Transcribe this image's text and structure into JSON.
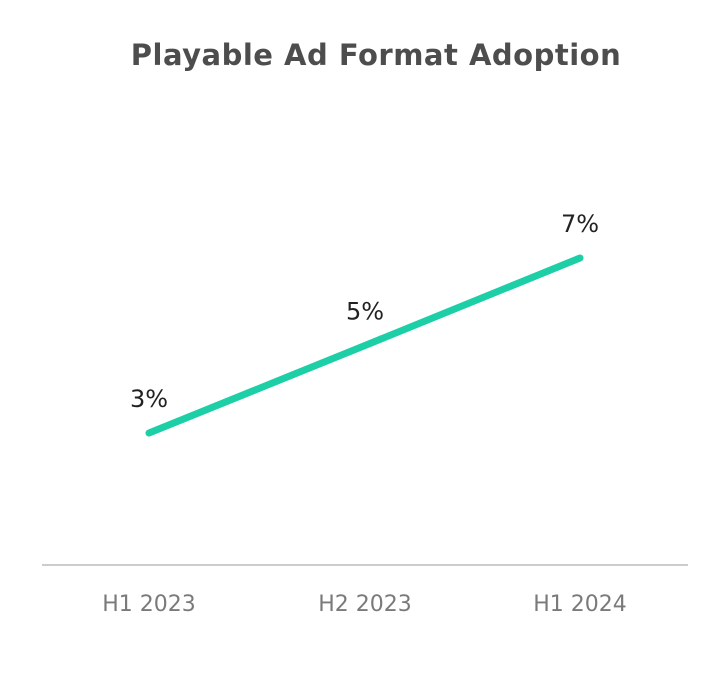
{
  "chart_data": {
    "type": "line",
    "title": "Playable Ad Format Adoption",
    "categories": [
      "H1 2023",
      "H2 2023",
      "H1 2024"
    ],
    "series": [
      {
        "values": [
          3,
          5,
          7
        ],
        "data_labels": [
          "3%",
          "5%",
          "7%"
        ],
        "color": "#1ccfa6"
      }
    ],
    "xlabel": "",
    "ylabel": "",
    "ylim": [
      0,
      10
    ],
    "grid": false,
    "legend": "none"
  },
  "colors": {
    "line": "#1ccfa6",
    "axis": "#cccccc",
    "title": "#4d4d4d",
    "tick_label": "#7a7a7a",
    "data_label": "#222222"
  }
}
